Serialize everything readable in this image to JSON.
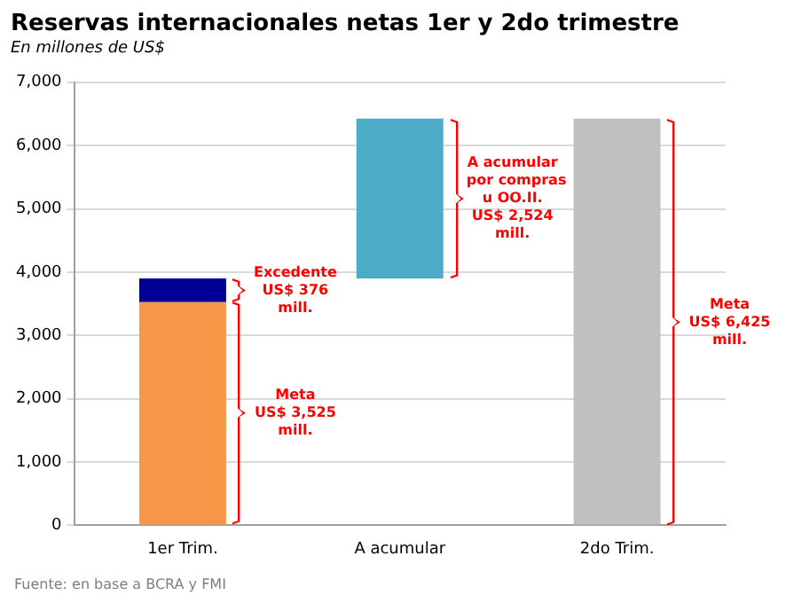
{
  "chart_data": {
    "type": "bar",
    "title": "Reservas internacionales netas 1er y 2do trimestre",
    "subtitle": "En millones de US$",
    "categories": [
      "1er Trim.",
      "A acumular",
      "2do Trim."
    ],
    "stacked": true,
    "series": [
      {
        "values": [
          3525,
          2524,
          6425
        ],
        "base": [
          0,
          3901,
          0
        ],
        "colors": [
          "#f79646",
          "#4bacc6",
          "#c0c0c0"
        ]
      },
      {
        "values": [
          376,
          null,
          null
        ],
        "color": "#000099"
      }
    ],
    "ylim": [
      0,
      7000
    ],
    "yticks": [
      {
        "value": 0,
        "label": "0"
      },
      {
        "value": 1000,
        "label": "1,000"
      },
      {
        "value": 2000,
        "label": "2,000"
      },
      {
        "value": 3000,
        "label": "3,000"
      },
      {
        "value": 4000,
        "label": "4,000"
      },
      {
        "value": 5000,
        "label": "5,000"
      },
      {
        "value": 6000,
        "label": "6,000"
      },
      {
        "value": 7000,
        "label": "7,000"
      }
    ],
    "grid": "y",
    "annotations": [
      "Meta\nUS$ 3,525\nmill.",
      "A acumular\npor compras\nu OO.II.\nUS$ 2,524\nmill.",
      "Meta\nUS$ 6,425\nmill.",
      "Excedente\nUS$ 376\nmill.",
      "Fuente: en base a BCRA y FMI"
    ]
  }
}
